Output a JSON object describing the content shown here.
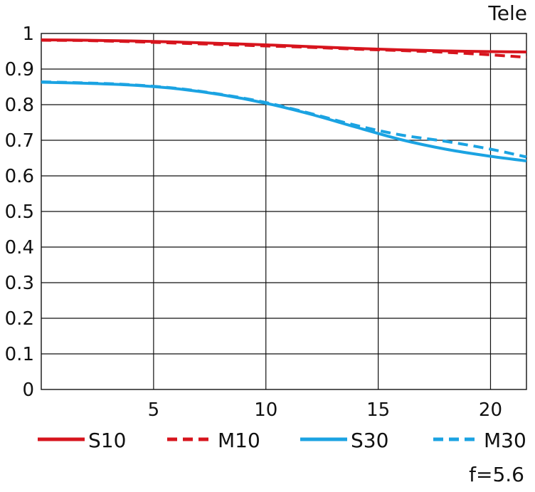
{
  "chart_data": {
    "type": "line",
    "title": "Tele",
    "note": "f=5.6",
    "xlim": [
      0,
      21.6
    ],
    "ylim": [
      0,
      1
    ],
    "x_ticks": [
      5,
      10,
      15,
      20
    ],
    "y_ticks": [
      0,
      0.1,
      0.2,
      0.3,
      0.4,
      0.5,
      0.6,
      0.7,
      0.8,
      0.9,
      1
    ],
    "y_tick_labels": [
      "0",
      "0.1",
      "0.2",
      "0.3",
      "0.4",
      "0.5",
      "0.6",
      "0.7",
      "0.8",
      "0.9",
      "1"
    ],
    "grid": true,
    "legend_position": "bottom",
    "series": [
      {
        "name": "S10",
        "color": "#d7141d",
        "dash": "solid",
        "x": [
          0,
          2,
          4,
          6,
          8,
          10,
          12,
          14,
          16,
          18,
          20,
          21.6
        ],
        "values": [
          0.982,
          0.981,
          0.979,
          0.976,
          0.972,
          0.968,
          0.963,
          0.958,
          0.954,
          0.951,
          0.949,
          0.948
        ]
      },
      {
        "name": "M10",
        "color": "#d7141d",
        "dash": "dashed",
        "x": [
          0,
          2,
          4,
          6,
          8,
          10,
          12,
          14,
          16,
          18,
          20,
          21.6
        ],
        "values": [
          0.981,
          0.98,
          0.977,
          0.973,
          0.969,
          0.965,
          0.961,
          0.956,
          0.952,
          0.947,
          0.94,
          0.933
        ]
      },
      {
        "name": "S30",
        "color": "#1ba3e2",
        "dash": "solid",
        "x": [
          0,
          2,
          4,
          6,
          8,
          10,
          12,
          14,
          16,
          18,
          20,
          21.6
        ],
        "values": [
          0.863,
          0.86,
          0.855,
          0.845,
          0.828,
          0.804,
          0.773,
          0.737,
          0.702,
          0.675,
          0.655,
          0.642
        ]
      },
      {
        "name": "M30",
        "color": "#1ba3e2",
        "dash": "dashed",
        "x": [
          0,
          2,
          4,
          6,
          8,
          10,
          12,
          14,
          16,
          18,
          20,
          21.6
        ],
        "values": [
          0.864,
          0.861,
          0.856,
          0.846,
          0.829,
          0.806,
          0.775,
          0.742,
          0.715,
          0.697,
          0.675,
          0.653
        ]
      }
    ]
  }
}
